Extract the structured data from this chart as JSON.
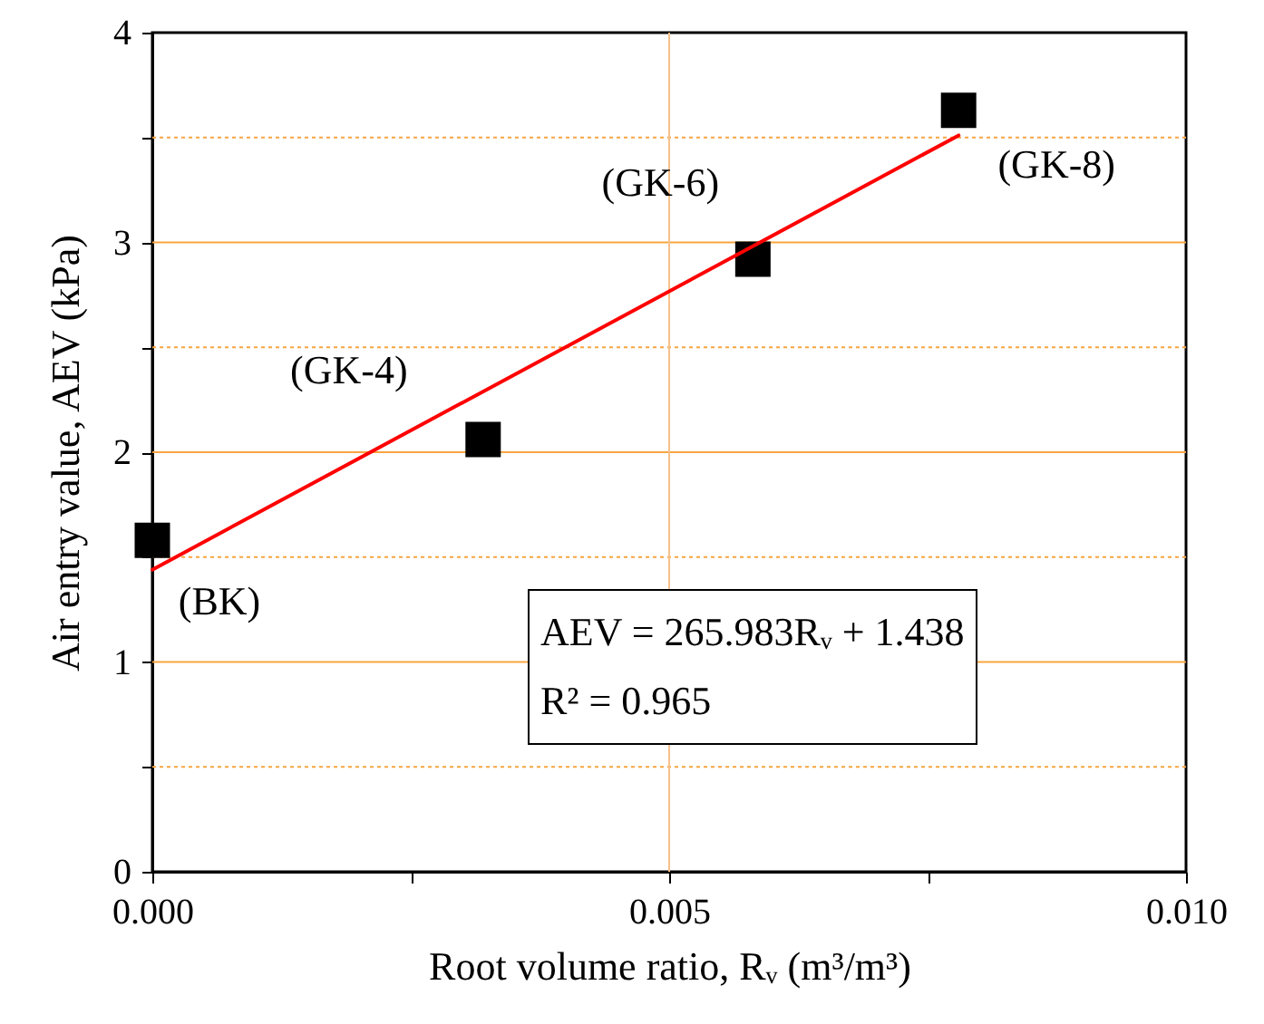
{
  "chart_data": {
    "type": "scatter",
    "xlabel": "Root volume ratio, Rᵥ (m³/m³)",
    "ylabel": "Air entry value, AEV (kPa)",
    "xlim": [
      0,
      0.01
    ],
    "ylim": [
      0,
      4
    ],
    "xticks": [
      {
        "value": 0,
        "label": "0.000"
      },
      {
        "value": 0.0025,
        "label": null
      },
      {
        "value": 0.005,
        "label": "0.005"
      },
      {
        "value": 0.0075,
        "label": null
      },
      {
        "value": 0.01,
        "label": "0.010"
      }
    ],
    "yticks": [
      0,
      {
        "value": 0.5,
        "label": null
      },
      1,
      {
        "value": 1.5,
        "label": null
      },
      2,
      {
        "value": 2.5,
        "label": null
      },
      3,
      {
        "value": 3.5,
        "label": null
      },
      4
    ],
    "grid": "y",
    "ref_lines": [
      {
        "axis": "x",
        "value": 0.005,
        "color": "#f7c08a"
      }
    ],
    "series": [
      {
        "color": "#000000",
        "marker": "square",
        "x": [
          0,
          0.0032,
          0.00581,
          0.0078
        ],
        "values": [
          1.58,
          2.06,
          2.92,
          3.63
        ]
      },
      {
        "type": "line",
        "color": "#ff0000",
        "line_style": "solid",
        "x": [
          0,
          0.0078
        ],
        "values": [
          1.44,
          3.51
        ]
      }
    ],
    "annotations": [
      {
        "text": "(BK)",
        "x": 0,
        "y": 1.58
      },
      {
        "text": "(GK-4)",
        "x": 0.0032,
        "y": 2.06
      },
      {
        "text": "(GK-6)",
        "x": 0.00581,
        "y": 2.92
      },
      {
        "text": "(GK-8)",
        "x": 0.0078,
        "y": 3.63
      },
      "AEV = 265.983Rᵥ + 1.438",
      "R² = 0.965"
    ]
  }
}
